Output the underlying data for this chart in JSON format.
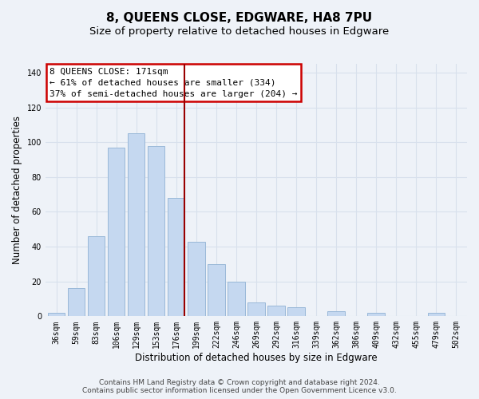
{
  "title": "8, QUEENS CLOSE, EDGWARE, HA8 7PU",
  "subtitle": "Size of property relative to detached houses in Edgware",
  "xlabel": "Distribution of detached houses by size in Edgware",
  "ylabel": "Number of detached properties",
  "bar_labels": [
    "36sqm",
    "59sqm",
    "83sqm",
    "106sqm",
    "129sqm",
    "153sqm",
    "176sqm",
    "199sqm",
    "222sqm",
    "246sqm",
    "269sqm",
    "292sqm",
    "316sqm",
    "339sqm",
    "362sqm",
    "386sqm",
    "409sqm",
    "432sqm",
    "455sqm",
    "479sqm",
    "502sqm"
  ],
  "bar_values": [
    2,
    16,
    46,
    97,
    105,
    98,
    68,
    43,
    30,
    20,
    8,
    6,
    5,
    0,
    3,
    0,
    2,
    0,
    0,
    2,
    0
  ],
  "bar_color": "#c5d8f0",
  "bar_edge_color": "#9ab8d8",
  "vline_x_index": 6,
  "vline_color": "#990000",
  "ylim": [
    0,
    145
  ],
  "yticks": [
    0,
    20,
    40,
    60,
    80,
    100,
    120,
    140
  ],
  "annotation_text": "8 QUEENS CLOSE: 171sqm\n← 61% of detached houses are smaller (334)\n37% of semi-detached houses are larger (204) →",
  "annotation_box_color": "#ffffff",
  "annotation_box_edge": "#cc0000",
  "footer_line1": "Contains HM Land Registry data © Crown copyright and database right 2024.",
  "footer_line2": "Contains public sector information licensed under the Open Government Licence v3.0.",
  "bg_color": "#eef2f8",
  "grid_color": "#d8e0ec",
  "title_fontsize": 11,
  "subtitle_fontsize": 9.5,
  "axis_label_fontsize": 8.5,
  "tick_fontsize": 7,
  "annotation_fontsize": 8,
  "footer_fontsize": 6.5
}
